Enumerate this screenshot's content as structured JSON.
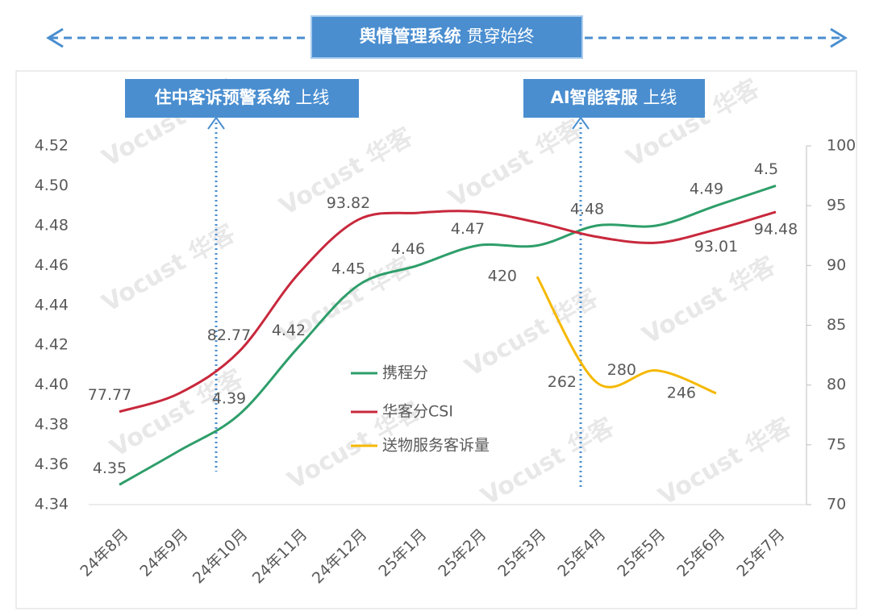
{
  "chart_data": {
    "type": "line",
    "banner": {
      "bold": "舆情管理系统",
      "text": "贯穿始终"
    },
    "annotations": [
      {
        "bold": "住中客诉预警系统",
        "text": "上线"
      },
      {
        "bold": "AI智能客服",
        "text": "上线"
      }
    ],
    "watermark": "Vocust 华客",
    "categories": [
      "24年8月",
      "24年9月",
      "24年10月",
      "24年11月",
      "24年12月",
      "25年1月",
      "25年2月",
      "25年3月",
      "25年4月",
      "25年5月",
      "25年6月",
      "25年7月"
    ],
    "series": [
      {
        "name": "携程分",
        "color": "#2e9e6a",
        "axis": "y",
        "values": [
          4.35,
          4.367,
          4.385,
          4.419,
          4.45,
          4.46,
          4.47,
          4.47,
          4.48,
          4.48,
          4.49,
          4.5
        ],
        "value_labels": [
          "4.35",
          null,
          "4.39",
          "4.42",
          "4.45",
          "4.46",
          "4.47",
          null,
          "4.48",
          null,
          "4.49",
          "4.5"
        ]
      },
      {
        "name": "华客分CSI",
        "color": "#c8283c",
        "axis": "y2",
        "values": [
          77.77,
          79.3,
          82.77,
          89.3,
          93.82,
          94.4,
          94.5,
          93.6,
          92.4,
          91.9,
          93.01,
          94.48
        ],
        "value_labels": [
          "77.77",
          null,
          "82.77",
          null,
          "93.82",
          null,
          null,
          null,
          null,
          null,
          "93.01",
          "94.48"
        ]
      },
      {
        "name": "送物服务客诉量",
        "color": "#f5b800",
        "axis": "y3",
        "values": [
          null,
          null,
          null,
          null,
          null,
          null,
          null,
          420,
          262,
          280,
          246,
          null
        ],
        "value_labels": [
          null,
          null,
          null,
          null,
          null,
          null,
          null,
          "420",
          "262",
          "280",
          "246",
          null
        ]
      }
    ],
    "ylim": [
      4.34,
      4.52
    ],
    "yticks": [
      {
        "value": 4.34,
        "label": "4.34"
      },
      {
        "value": 4.36,
        "label": "4.36"
      },
      {
        "value": 4.38,
        "label": "4.38"
      },
      {
        "value": 4.4,
        "label": "4.40"
      },
      {
        "value": 4.42,
        "label": "4.42"
      },
      {
        "value": 4.44,
        "label": "4.44"
      },
      {
        "value": 4.46,
        "label": "4.46"
      },
      {
        "value": 4.48,
        "label": "4.48"
      },
      {
        "value": 4.5,
        "label": "4.50"
      },
      {
        "value": 4.52,
        "label": "4.52"
      }
    ],
    "y2lim": [
      70,
      100
    ],
    "y2ticks": [
      70,
      75,
      80,
      85,
      90,
      95,
      100
    ],
    "y3lim": [
      80,
      615
    ],
    "grid": false
  }
}
